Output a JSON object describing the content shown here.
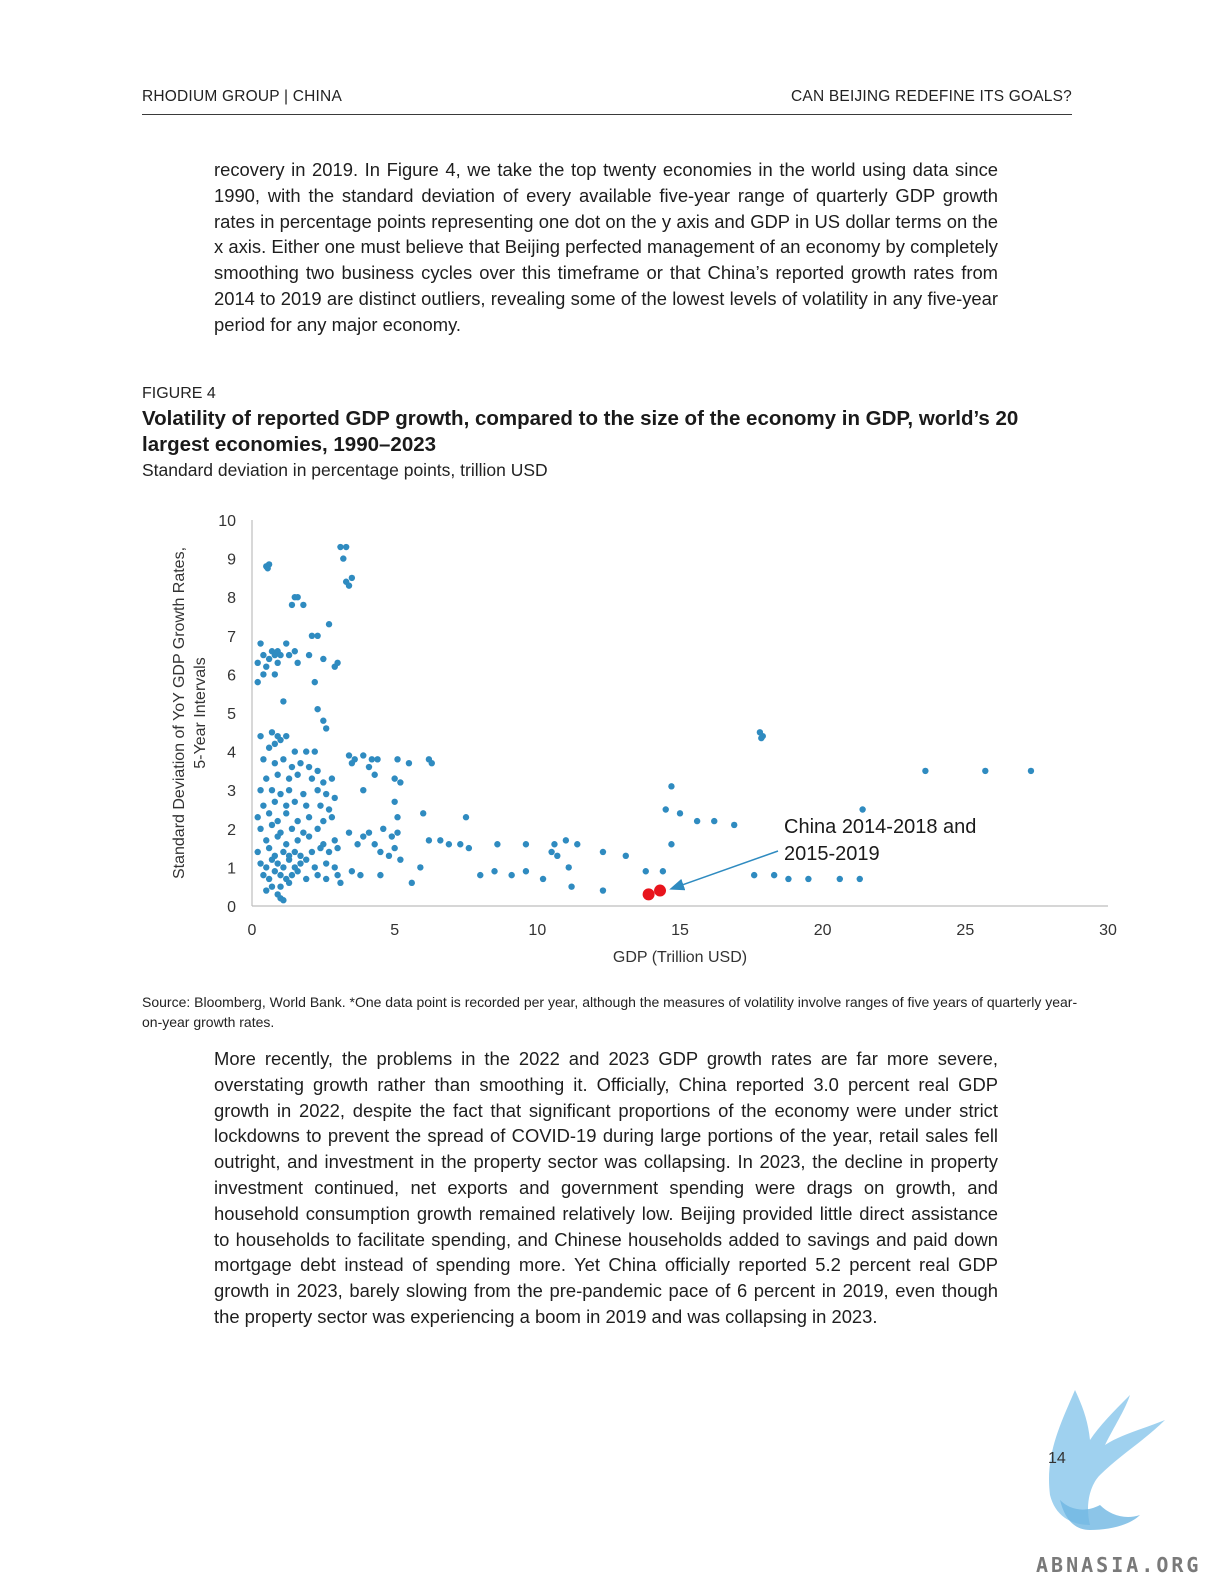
{
  "header": {
    "left": "RHODIUM GROUP  |  CHINA",
    "right": "CAN BEIJING REDEFINE ITS GOALS?"
  },
  "para1": "recovery in 2019. In Figure 4, we take the top twenty economies in the world using data since 1990, with the standard deviation of every available five-year range of quarterly GDP growth rates in percentage points representing one dot on the y axis and GDP in US dollar terms on the x axis. Either one must believe that Beijing perfected management of an economy by completely smoothing two business cycles over this timeframe or that China’s reported growth rates from 2014 to 2019 are distinct outliers, revealing some of the lowest levels of volatility in any five-year period for any major economy.",
  "figure": {
    "label": "FIGURE 4",
    "title": "Volatility of reported GDP growth, compared to the size of the economy in GDP, world’s 20 largest economies, 1990–2023",
    "subtitle": "Standard deviation in percentage points, trillion USD",
    "source": "Source: Bloomberg, World Bank. *One data point is recorded per year, although the measures of volatility involve ranges of five years of quarterly year-on-year growth rates."
  },
  "chart_data": {
    "type": "scatter",
    "xlabel": "GDP (Trillion USD)",
    "ylabel": "Standard Deviation of YoY GDP Growth Rates, 5-Year Intervals",
    "xlim": [
      0,
      30
    ],
    "ylim": [
      0,
      10
    ],
    "xticks": [
      "0",
      "5",
      "10",
      "15",
      "20",
      "25",
      "30"
    ],
    "yticks": [
      "0",
      "1",
      "2",
      "3",
      "4",
      "5",
      "6",
      "7",
      "8",
      "9",
      "10"
    ],
    "grid": false,
    "annotation": "China 2014-2018 and 2015-2019",
    "colors": {
      "points": "#2f8bc0",
      "highlight": "#e8141c",
      "arrow": "#2f8bc0"
    },
    "highlight_points": [
      [
        13.9,
        0.3
      ],
      [
        14.3,
        0.4
      ]
    ],
    "series": [
      {
        "values": [
          [
            0.5,
            8.8
          ],
          [
            0.55,
            8.75
          ],
          [
            0.6,
            8.85
          ],
          [
            1.5,
            8.0
          ],
          [
            1.6,
            8.0
          ],
          [
            1.4,
            7.8
          ],
          [
            1.8,
            7.8
          ],
          [
            2.1,
            7.0
          ],
          [
            2.3,
            7.0
          ],
          [
            2.7,
            7.3
          ],
          [
            0.3,
            6.8
          ],
          [
            0.4,
            6.5
          ],
          [
            0.6,
            6.4
          ],
          [
            0.7,
            6.6
          ],
          [
            0.8,
            6.5
          ],
          [
            0.9,
            6.6
          ],
          [
            1.0,
            6.5
          ],
          [
            1.2,
            6.8
          ],
          [
            1.5,
            6.6
          ],
          [
            0.2,
            6.3
          ],
          [
            0.5,
            6.2
          ],
          [
            0.9,
            6.3
          ],
          [
            0.4,
            6.0
          ],
          [
            0.8,
            6.0
          ],
          [
            1.3,
            6.5
          ],
          [
            1.6,
            6.3
          ],
          [
            2.0,
            6.5
          ],
          [
            2.5,
            6.4
          ],
          [
            2.9,
            6.2
          ],
          [
            3.0,
            6.3
          ],
          [
            0.2,
            5.8
          ],
          [
            2.2,
            5.8
          ],
          [
            1.1,
            5.3
          ],
          [
            2.3,
            5.1
          ],
          [
            3.1,
            9.3
          ],
          [
            3.3,
            9.3
          ],
          [
            3.2,
            9.0
          ],
          [
            3.3,
            8.4
          ],
          [
            3.5,
            8.5
          ],
          [
            3.4,
            8.3
          ],
          [
            0.3,
            4.4
          ],
          [
            0.7,
            4.5
          ],
          [
            0.9,
            4.4
          ],
          [
            1.0,
            4.3
          ],
          [
            1.2,
            4.4
          ],
          [
            0.8,
            4.2
          ],
          [
            0.6,
            4.1
          ],
          [
            1.5,
            4.0
          ],
          [
            1.9,
            4.0
          ],
          [
            2.2,
            4.0
          ],
          [
            2.5,
            4.8
          ],
          [
            2.6,
            4.6
          ],
          [
            0.4,
            3.8
          ],
          [
            0.8,
            3.7
          ],
          [
            1.1,
            3.8
          ],
          [
            1.4,
            3.6
          ],
          [
            1.7,
            3.7
          ],
          [
            2.0,
            3.6
          ],
          [
            2.3,
            3.5
          ],
          [
            0.5,
            3.3
          ],
          [
            0.9,
            3.4
          ],
          [
            1.3,
            3.3
          ],
          [
            1.6,
            3.4
          ],
          [
            2.1,
            3.3
          ],
          [
            2.5,
            3.2
          ],
          [
            2.8,
            3.3
          ],
          [
            0.3,
            3.0
          ],
          [
            0.7,
            3.0
          ],
          [
            1.0,
            2.9
          ],
          [
            1.3,
            3.0
          ],
          [
            1.8,
            2.9
          ],
          [
            2.3,
            3.0
          ],
          [
            2.6,
            2.9
          ],
          [
            2.9,
            2.8
          ],
          [
            0.4,
            2.6
          ],
          [
            0.8,
            2.7
          ],
          [
            1.2,
            2.6
          ],
          [
            1.5,
            2.7
          ],
          [
            1.9,
            2.6
          ],
          [
            2.4,
            2.6
          ],
          [
            2.7,
            2.5
          ],
          [
            0.2,
            2.3
          ],
          [
            0.6,
            2.4
          ],
          [
            0.9,
            2.2
          ],
          [
            1.2,
            2.4
          ],
          [
            1.6,
            2.2
          ],
          [
            2.0,
            2.3
          ],
          [
            2.5,
            2.2
          ],
          [
            2.8,
            2.3
          ],
          [
            0.3,
            2.0
          ],
          [
            0.7,
            2.1
          ],
          [
            1.0,
            1.9
          ],
          [
            1.4,
            2.0
          ],
          [
            1.8,
            1.9
          ],
          [
            2.3,
            2.0
          ],
          [
            0.5,
            1.7
          ],
          [
            0.9,
            1.8
          ],
          [
            1.2,
            1.6
          ],
          [
            1.6,
            1.7
          ],
          [
            2.0,
            1.8
          ],
          [
            2.5,
            1.6
          ],
          [
            2.9,
            1.7
          ],
          [
            0.2,
            1.4
          ],
          [
            0.6,
            1.5
          ],
          [
            0.8,
            1.3
          ],
          [
            1.1,
            1.4
          ],
          [
            1.3,
            1.3
          ],
          [
            1.5,
            1.4
          ],
          [
            1.7,
            1.3
          ],
          [
            2.1,
            1.4
          ],
          [
            2.4,
            1.5
          ],
          [
            2.7,
            1.4
          ],
          [
            3.0,
            1.5
          ],
          [
            0.3,
            1.1
          ],
          [
            0.5,
            1.0
          ],
          [
            0.7,
            1.2
          ],
          [
            0.9,
            1.1
          ],
          [
            1.1,
            1.0
          ],
          [
            1.3,
            1.2
          ],
          [
            1.5,
            1.0
          ],
          [
            1.7,
            1.1
          ],
          [
            1.9,
            1.2
          ],
          [
            2.2,
            1.0
          ],
          [
            2.6,
            1.1
          ],
          [
            2.9,
            1.0
          ],
          [
            0.4,
            0.8
          ],
          [
            0.6,
            0.7
          ],
          [
            0.8,
            0.9
          ],
          [
            1.0,
            0.8
          ],
          [
            1.2,
            0.7
          ],
          [
            1.4,
            0.8
          ],
          [
            1.6,
            0.9
          ],
          [
            1.9,
            0.7
          ],
          [
            2.3,
            0.8
          ],
          [
            2.6,
            0.7
          ],
          [
            3.0,
            0.8
          ],
          [
            3.1,
            0.6
          ],
          [
            0.7,
            0.5
          ],
          [
            1.0,
            0.5
          ],
          [
            1.3,
            0.6
          ],
          [
            1.0,
            0.2
          ],
          [
            1.1,
            0.15
          ],
          [
            0.5,
            0.4
          ],
          [
            0.9,
            0.3
          ],
          [
            3.4,
            3.9
          ],
          [
            3.6,
            3.8
          ],
          [
            3.9,
            3.9
          ],
          [
            4.2,
            3.8
          ],
          [
            4.4,
            3.8
          ],
          [
            3.5,
            3.7
          ],
          [
            4.1,
            3.6
          ],
          [
            4.3,
            3.4
          ],
          [
            3.9,
            3.0
          ],
          [
            5.0,
            3.3
          ],
          [
            5.2,
            3.2
          ],
          [
            5.1,
            3.8
          ],
          [
            5.5,
            3.7
          ],
          [
            6.2,
            3.8
          ],
          [
            6.3,
            3.7
          ],
          [
            5.0,
            2.7
          ],
          [
            5.1,
            2.3
          ],
          [
            6.0,
            2.4
          ],
          [
            7.5,
            2.3
          ],
          [
            3.4,
            1.9
          ],
          [
            3.9,
            1.8
          ],
          [
            4.1,
            1.9
          ],
          [
            4.6,
            2.0
          ],
          [
            4.9,
            1.8
          ],
          [
            5.1,
            1.9
          ],
          [
            3.7,
            1.6
          ],
          [
            4.3,
            1.6
          ],
          [
            4.5,
            1.4
          ],
          [
            4.8,
            1.3
          ],
          [
            5.0,
            1.5
          ],
          [
            5.2,
            1.2
          ],
          [
            3.5,
            0.9
          ],
          [
            3.8,
            0.8
          ],
          [
            4.5,
            0.8
          ],
          [
            5.9,
            1.0
          ],
          [
            5.6,
            0.6
          ],
          [
            6.2,
            1.7
          ],
          [
            6.6,
            1.7
          ],
          [
            6.9,
            1.6
          ],
          [
            7.3,
            1.6
          ],
          [
            7.6,
            1.5
          ],
          [
            8.6,
            1.6
          ],
          [
            9.6,
            1.6
          ],
          [
            10.5,
            1.4
          ],
          [
            10.6,
            1.6
          ],
          [
            11.0,
            1.7
          ],
          [
            11.4,
            1.6
          ],
          [
            10.7,
            1.3
          ],
          [
            12.3,
            1.4
          ],
          [
            13.1,
            1.3
          ],
          [
            8.0,
            0.8
          ],
          [
            8.5,
            0.9
          ],
          [
            9.1,
            0.8
          ],
          [
            9.6,
            0.9
          ],
          [
            10.2,
            0.7
          ],
          [
            11.1,
            1.0
          ],
          [
            11.2,
            0.5
          ],
          [
            12.3,
            0.4
          ],
          [
            13.8,
            0.9
          ],
          [
            14.4,
            0.9
          ],
          [
            14.7,
            3.1
          ],
          [
            14.5,
            2.5
          ],
          [
            15.0,
            2.4
          ],
          [
            15.6,
            2.2
          ],
          [
            16.2,
            2.2
          ],
          [
            16.9,
            2.1
          ],
          [
            14.7,
            1.6
          ],
          [
            17.8,
            4.5
          ],
          [
            17.9,
            4.4
          ],
          [
            17.85,
            4.35
          ],
          [
            17.6,
            0.8
          ],
          [
            18.3,
            0.8
          ],
          [
            18.8,
            0.7
          ],
          [
            19.5,
            0.7
          ],
          [
            20.6,
            0.7
          ],
          [
            21.3,
            0.7
          ],
          [
            21.4,
            2.5
          ],
          [
            23.6,
            3.5
          ],
          [
            25.7,
            3.5
          ],
          [
            27.3,
            3.5
          ]
        ]
      }
    ]
  },
  "para2": "More recently, the problems in the 2022 and 2023 GDP growth rates are far more severe, overstating growth rather than smoothing it. Officially, China reported 3.0 percent real GDP growth in 2022, despite the fact that significant proportions of the economy were under strict lockdowns to prevent the spread of COVID-19 during large portions of the year, retail sales fell outright, and investment in the property sector was collapsing. In 2023, the decline in property investment continued, net exports and government spending were drags on growth, and household consumption growth remained relatively low. Beijing provided little direct assistance to households to facilitate spending, and Chinese households added to savings and paid down mortgage debt instead of spending more. Yet China officially reported 5.2 percent real GDP growth in 2023, barely slowing from the pre-pandemic pace of 6 percent in 2019, even though the property sector was experiencing a boom in 2019 and was collapsing in 2023.",
  "page_number": "14",
  "watermark": "ABNASIA.ORG"
}
